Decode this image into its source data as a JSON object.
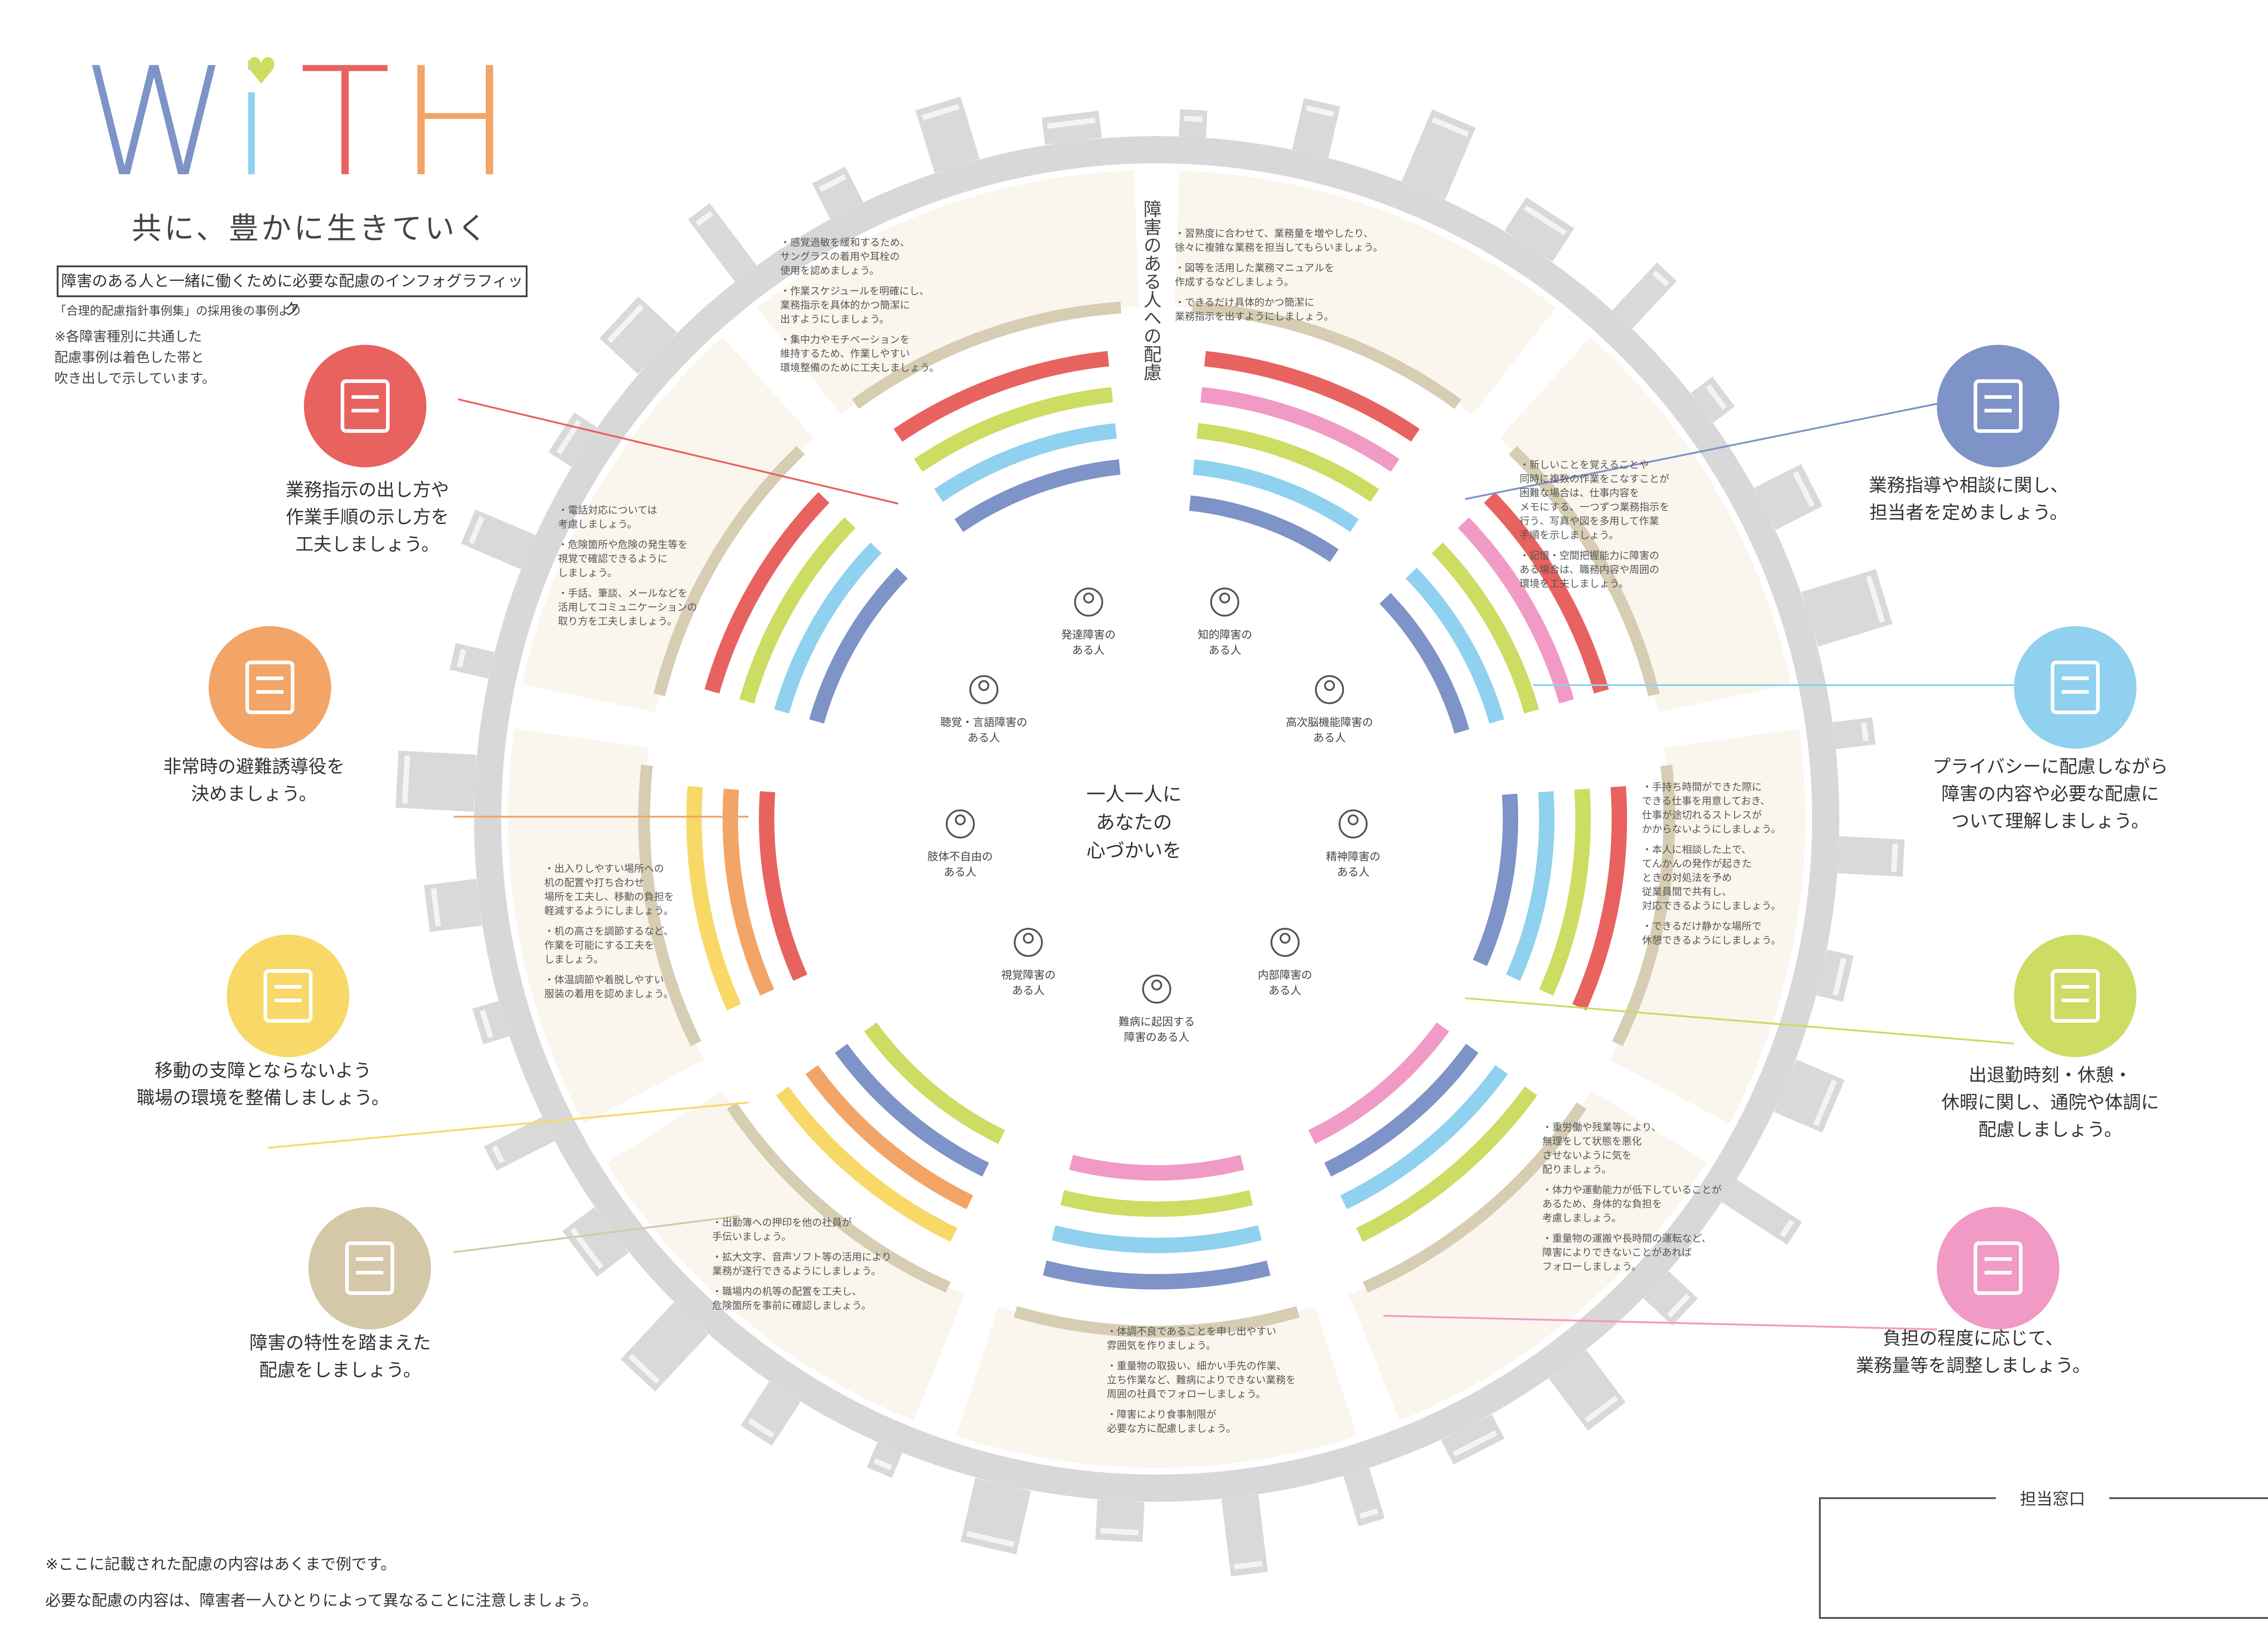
{
  "title": {
    "logo_letters": [
      {
        "char": "W",
        "color": "#7e93c7"
      },
      {
        "char": "i",
        "color": "#8fd1ef"
      },
      {
        "char": "T",
        "color": "#e8625f"
      },
      {
        "char": "H",
        "color": "#f2a567"
      },
      {
        "char": "♥",
        "color": "#cddc63"
      }
    ],
    "tagline": "共に、豊かに生きていく",
    "subtitle": "障害のある人と一緒に働くために必要な配慮のインフォグラフィック",
    "source": "「合理的配慮指針事例集」の採用後の事例より",
    "note": "※各障害種別に共通した\n配慮事例は着色した帯と\n吹き出しで示しています。"
  },
  "vertical_title": "障害のある人への配慮",
  "center_text": "一人一人に\nあなたの\n心づかいを",
  "categories": [
    {
      "label": "発達障害の\nある人",
      "icon": "developmental-icon"
    },
    {
      "label": "知的障害の\nある人",
      "icon": "intellectual-head-icon"
    },
    {
      "label": "高次脳機能障害の\nある人",
      "icon": "brain-icon"
    },
    {
      "label": "精神障害の\nある人",
      "icon": "heart-icon"
    },
    {
      "label": "内部障害の\nある人",
      "icon": "internal-person-icon"
    },
    {
      "label": "難病に起因する\n障害のある人",
      "icon": "dna-icon"
    },
    {
      "label": "視覚障害の\nある人",
      "icon": "eye-icon"
    },
    {
      "label": "肢体不自由の\nある人",
      "icon": "wheelchair-icon"
    },
    {
      "label": "聴覚・言語障害の\nある人",
      "icon": "ear-icon"
    }
  ],
  "ring_colors": [
    "#e8625f",
    "#f19ac5",
    "#cddc63",
    "#8fd1ef",
    "#7e93c7",
    "#f2a567",
    "#f8d867"
  ],
  "bubbles": [
    [
      "・感覚過敏を緩和するため、\nサングラスの着用や耳栓の\n使用を認めましょう。",
      "・作業スケジュールを明確にし、\n業務指示を具体的かつ簡潔に\n出すようにしましょう。",
      "・集中力やモチベーションを\n維持するため、作業しやすい\n環境整備のために工夫しましょう。"
    ],
    [
      "・習熟度に合わせて、業務量を増やしたり、\n徐々に複雑な業務を担当してもらいましょう。",
      "・図等を活用した業務マニュアルを\n作成するなどしましょう。",
      "・できるだけ具体的かつ簡潔に\n業務指示を出すようにしましょう。"
    ],
    [
      "・新しいことを覚えることや\n同時に複数の作業をこなすことが\n困難な場合は、仕事内容を\nメモにする、一つずつ業務指示を\n行う、写真や図を多用して作業\n手順を示しましょう。",
      "・記憶・空間把握能力に障害の\nある場合は、職務内容や周囲の\n環境を工夫しましょう。"
    ],
    [
      "・手持ち時間ができた際に\nできる仕事を用意しておき、\n仕事が途切れるストレスが\nかからないようにしましょう。",
      "・本人に相談した上で、\nてんかんの発作が起きた\nときの対処法を予め\n従業員間で共有し、\n対応できるようにしましょう。",
      "・できるだけ静かな場所で\n休憩できるようにしましょう。"
    ],
    [
      "・重労働や残業等により、\n無理をして状態を悪化\nさせないように気を\n配りましょう。",
      "・体力や運動能力が低下していることが\nあるため、身体的な負担を\n考慮しましょう。",
      "・重量物の運搬や長時間の運転など、\n障害によりできないことがあれば\nフォローしましょう。"
    ],
    [
      "・体調不良であることを申し出やすい\n雰囲気を作りましょう。",
      "・重量物の取扱い、細かい手先の作業、\n立ち作業など、難病によりできない業務を\n周囲の社員でフォローしましょう。",
      "・障害により食事制限が\n必要な方に配慮しましょう。"
    ],
    [
      "・出勤簿への押印を他の社員が\n手伝いましょう。",
      "・拡大文字、音声ソフト等の活用により\n業務が遂行できるようにしましょう。",
      "・職場内の机等の配置を工夫し、\n危険箇所を事前に確認しましょう。"
    ],
    [
      "・出入りしやすい場所への\n机の配置や打ち合わせ\n場所を工夫し、移動の負担を\n軽減するようにしましょう。",
      "・机の高さを調節するなど、\n作業を可能にする工夫を\nしましょう。",
      "・体温調節や着脱しやすい\n服装の着用を認めましょう。"
    ],
    [
      "・電話対応については\n考慮しましょう。",
      "・危険箇所や危険の発生等を\n視覚で確認できるように\nしましょう。",
      "・手話、筆談、メールなどを\n活用してコミュニケーションの\n取り方を工夫しましょう。"
    ]
  ],
  "messages": [
    {
      "id": "work-instructions",
      "text": "業務指示の出し方や\n作業手順の示し方を\n工夫しましょう。",
      "color": "#e8625f",
      "icon": "documents-icon"
    },
    {
      "id": "evacuation",
      "text": "非常時の避難誘導役を\n決めましょう。",
      "color": "#f2a567",
      "icon": "evacuation-guide-icon"
    },
    {
      "id": "workplace-environment",
      "text": "移動の支障とならないよう\n職場の環境を整備しましょう。",
      "color": "#f8d867",
      "icon": "no-obstacle-icon"
    },
    {
      "id": "consideration",
      "text": "障害の特性を踏まえた\n配慮をしましょう。",
      "color": "#d5c8a8",
      "icon": "handshake-icon"
    },
    {
      "id": "supervisor",
      "text": "業務指導や相談に関し、\n担当者を定めましょう。",
      "color": "#7e93c7",
      "icon": "person-tie-icon"
    },
    {
      "id": "privacy",
      "text": "プライバシーに配慮しながら\n障害の内容や必要な配慮に\nついて理解しましょう。",
      "color": "#8fd1ef",
      "icon": "heart-speech-icon"
    },
    {
      "id": "attendance",
      "text": "出退勤時刻・休憩・\n休暇に関し、通院や体調に\n配慮しましょう。",
      "color": "#cddc63",
      "icon": "calendar-clock-icon"
    },
    {
      "id": "workload",
      "text": "負担の程度に応じて、\n業務量等を調整しましょう。",
      "color": "#f19ac5",
      "icon": "clipboard-icon"
    }
  ],
  "contact_label": "担当窓口",
  "footer": {
    "line1": "※ここに記載された配慮の内容はあくまで例です。",
    "line2": "必要な配慮の内容は、障害者一人ひとりによって異なることに注意しましょう。"
  }
}
